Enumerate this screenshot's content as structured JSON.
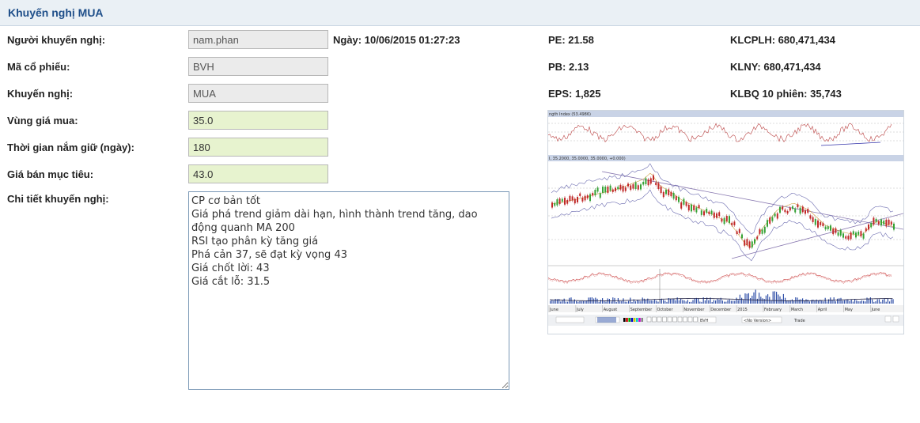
{
  "header": {
    "title": "Khuyến nghị MUA"
  },
  "form": {
    "recommender_label": "Người khuyến nghị:",
    "recommender_value": "nam.phan",
    "stock_label": "Mã cổ phiếu:",
    "stock_value": "BVH",
    "recommendation_label": "Khuyến nghị:",
    "recommendation_value": "MUA",
    "buy_range_label": "Vùng giá mua:",
    "buy_range_value": "35.0",
    "hold_label": "Thời gian nắm giữ (ngày):",
    "hold_value": "180",
    "target_label": "Giá bán mục tiêu:",
    "target_value": "43.0",
    "detail_label": "Chi tiết khuyến nghị:",
    "detail_value": "CP cơ bản tốt\nGiá phá trend giảm dài hạn, hình thành trend tăng, dao động quanh MA 200\nRSI tạo phân kỳ tăng giá\nPhá cản 37, sẽ đạt kỳ vọng 43\nGiá chốt lời: 43\nGiá cắt lỗ: 31.5"
  },
  "info": {
    "date": "Ngày: 10/06/2015 01:27:23",
    "pe": "PE: 21.58",
    "pb": "PB: 2.13",
    "eps": "EPS: 1,825",
    "klcplh": "KLCPLH: 680,471,434",
    "klny": "KLNY: 680,471,434",
    "klbq": "KLBQ 10 phiên: 35,743"
  },
  "chart_image": {
    "rsi_label": "ngth Index (53.4986)",
    "price_label": "I, 35.2000, 35.0000, 35.0000, +0.000)",
    "months": [
      "June",
      "July",
      "August",
      "September",
      "October",
      "November",
      "December",
      "2015",
      "February",
      "March",
      "April",
      "May",
      "June"
    ],
    "toolbar_symbol": "BVH",
    "toolbar_version": "<No Version>",
    "toolbar_trade": "Trade"
  }
}
